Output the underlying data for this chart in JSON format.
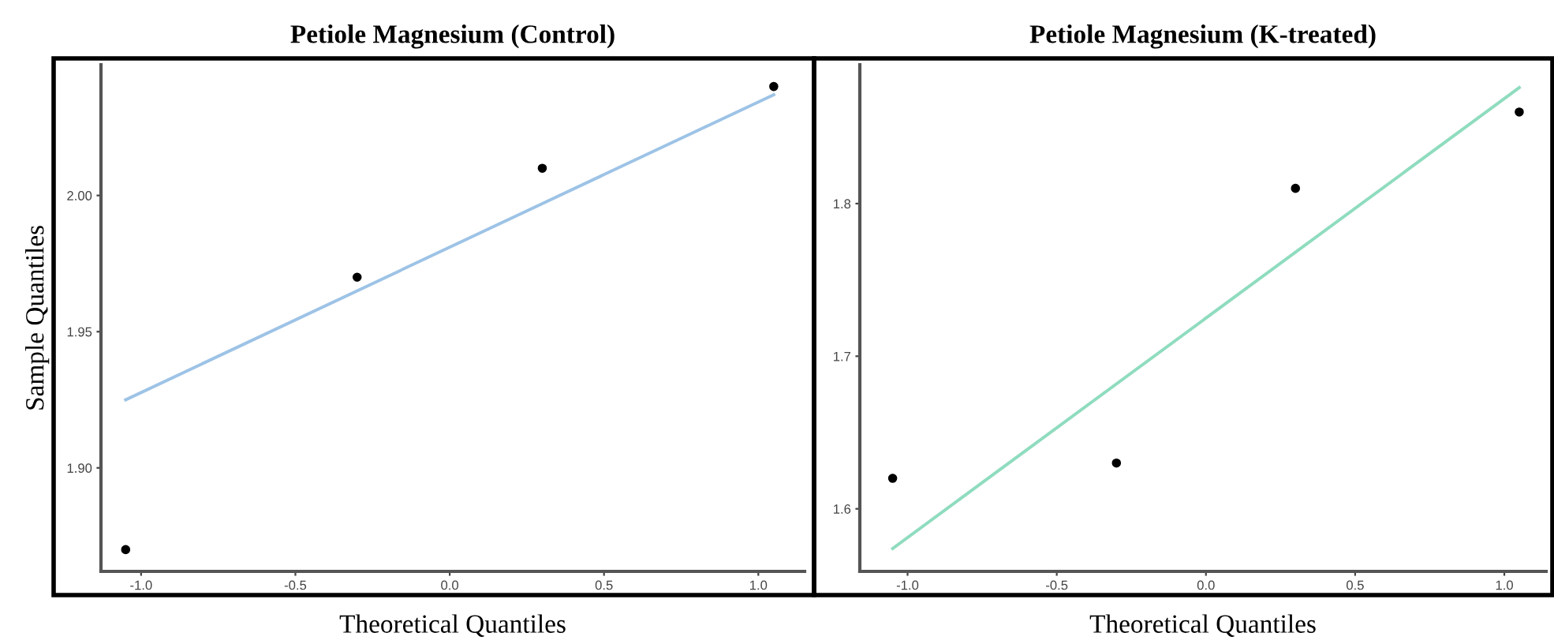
{
  "chart_data": [
    {
      "type": "scatter",
      "title": "Petiole Magnesium (Control)",
      "xlabel": "Theoretical Quantiles",
      "ylabel": "Sample Quantiles",
      "xlim": [
        -1.13,
        1.15
      ],
      "ylim": [
        1.862,
        2.048
      ],
      "xticks": [
        {
          "value": -1.0,
          "label": "-1.0"
        },
        {
          "value": -0.5,
          "label": "-0.5"
        },
        {
          "value": 0.0,
          "label": "0.0"
        },
        {
          "value": 0.5,
          "label": "0.5"
        },
        {
          "value": 1.0,
          "label": "1.0"
        }
      ],
      "yticks": [
        {
          "value": 1.9,
          "label": "1.90"
        },
        {
          "value": 1.95,
          "label": "1.95"
        },
        {
          "value": 2.0,
          "label": "2.00"
        }
      ],
      "grid": false,
      "legend": false,
      "series": [
        {
          "marker": "circle",
          "color": "#000000",
          "x": [
            -1.05,
            -0.3,
            0.3,
            1.05
          ],
          "values": [
            1.87,
            1.97,
            2.01,
            2.04
          ]
        },
        {
          "type": "line",
          "marker": "none",
          "color": "#9dc3e6",
          "x": [
            -1.05,
            1.05
          ],
          "values": [
            1.925,
            2.037
          ]
        }
      ]
    },
    {
      "type": "scatter",
      "title": "Petiole Magnesium (K-treated)",
      "xlabel": "Theoretical Quantiles",
      "xlim": [
        -1.16,
        1.14
      ],
      "ylim": [
        1.559,
        1.891
      ],
      "xticks": [
        {
          "value": -1.0,
          "label": "-1.0"
        },
        {
          "value": -0.5,
          "label": "-0.5"
        },
        {
          "value": 0.0,
          "label": "0.0"
        },
        {
          "value": 0.5,
          "label": "0.5"
        },
        {
          "value": 1.0,
          "label": "1.0"
        }
      ],
      "yticks": [
        1.6,
        1.7,
        1.8
      ],
      "grid": false,
      "legend": false,
      "series": [
        {
          "marker": "circle",
          "color": "#000000",
          "x": [
            -1.05,
            -0.3,
            0.3,
            1.05
          ],
          "values": [
            1.62,
            1.63,
            1.81,
            1.86
          ]
        },
        {
          "type": "line",
          "marker": "none",
          "color": "#8fdcbf",
          "x": [
            -1.05,
            1.05
          ],
          "values": [
            1.574,
            1.876
          ]
        }
      ]
    }
  ]
}
